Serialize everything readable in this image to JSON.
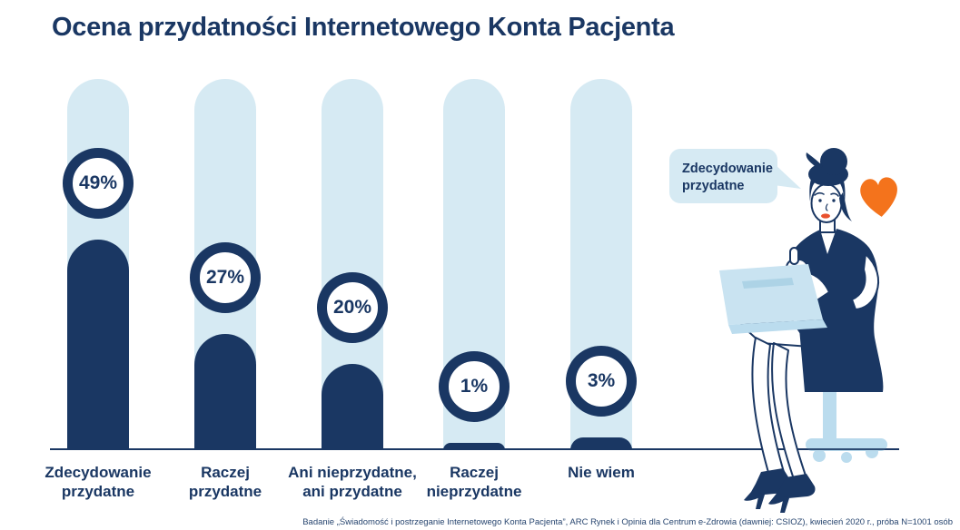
{
  "header": {
    "title": "Ocena przydatności Internetowego Konta Pacjenta"
  },
  "chart_data": {
    "type": "bar",
    "title": "Ocena przydatności Internetowego Konta Pacjenta",
    "orientation": "vertical",
    "categories": [
      "Zdecydowanie przydatne",
      "Raczej przydatne",
      "Ani nieprzydatne, ani przydatne",
      "Raczej nieprzydatne",
      "Nie wiem"
    ],
    "category_lines": [
      [
        "Zdecydowanie",
        "przydatne"
      ],
      [
        "Raczej",
        "przydatne"
      ],
      [
        "Ani nieprzydatne,",
        "ani przydatne"
      ],
      [
        "Raczej",
        "nieprzydatne"
      ],
      [
        "Nie wiem"
      ]
    ],
    "values": [
      49,
      27,
      20,
      1,
      3
    ],
    "value_labels": [
      "49%",
      "27%",
      "20%",
      "1%",
      "3%"
    ],
    "unit": "%",
    "ylim": [
      0,
      100
    ],
    "grid": false,
    "legend": false,
    "xlabel": "",
    "ylabel": "",
    "bar_style": "pill-track-with-circular-value-badge"
  },
  "illustration": {
    "speech_bubble": {
      "line1": "Zdecydowanie",
      "line2": "przydatne"
    },
    "icons": [
      "speech-bubble-icon",
      "heart-icon",
      "woman-with-laptop-illustration",
      "office-stool-icon",
      "laptop-icon"
    ]
  },
  "footnote": "Badanie „Świadomość i postrzeganie Internetowego Konta Pacjenta”, ARC Rynek i Opinia dla Centrum e-Zdrowia (dawniej: CSIOZ), kwiecień 2020 r., próba N=1001 osób",
  "colors": {
    "navy": "#1A3763",
    "track_blue": "#D6EAF3",
    "chair_blue": "#BBDCEE",
    "laptop_blue": "#C9E3F1",
    "accent_orange": "#F4731C",
    "lips_red": "#E8512E",
    "background": "#FFFFFF"
  }
}
